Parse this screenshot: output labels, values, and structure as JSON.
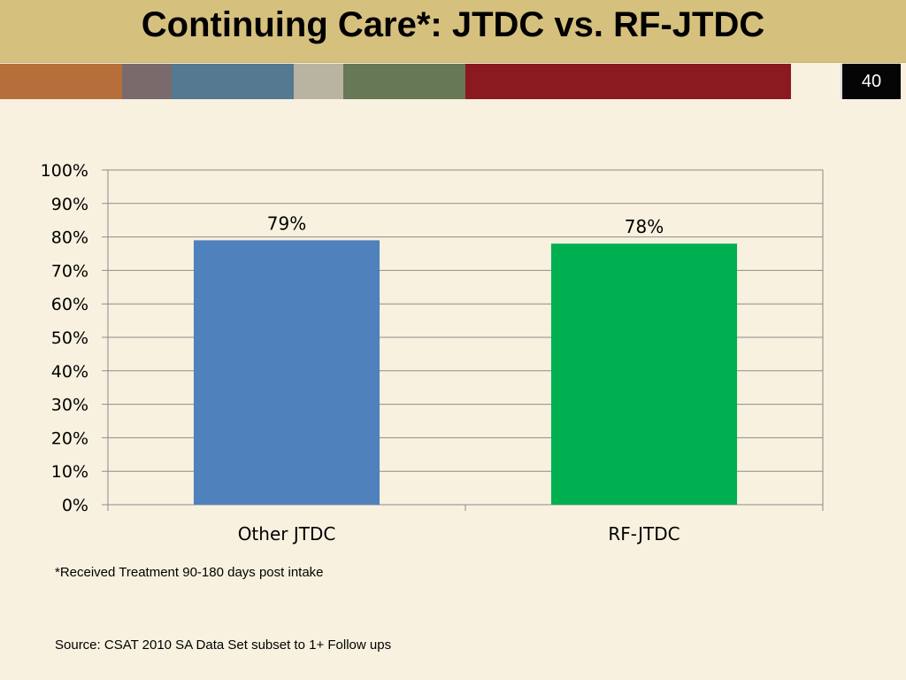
{
  "slide": {
    "title": "Continuing Care*:  JTDC vs. RF-JTDC",
    "page_number": "40",
    "footnote": "*Received Treatment 90-180 days post intake",
    "source": "Source:  CSAT 2010 SA Data Set subset to 1+ Follow ups"
  },
  "stripe_colors": [
    "#b66f3a",
    "#7a6a6c",
    "#55798f",
    "#b9b3a2",
    "#667856",
    "#8a1a1f"
  ],
  "chart_data": {
    "type": "bar",
    "categories": [
      "Other JTDC",
      "RF-JTDC"
    ],
    "values": [
      0.79,
      0.78
    ],
    "data_labels": [
      "79%",
      "78%"
    ],
    "bar_colors": [
      "#4f81bd",
      "#00b050"
    ],
    "yticks": [
      "0%",
      "10%",
      "20%",
      "30%",
      "40%",
      "50%",
      "60%",
      "70%",
      "80%",
      "90%",
      "100%"
    ],
    "ylim": [
      0,
      1
    ],
    "grid": true,
    "legend": "none"
  }
}
